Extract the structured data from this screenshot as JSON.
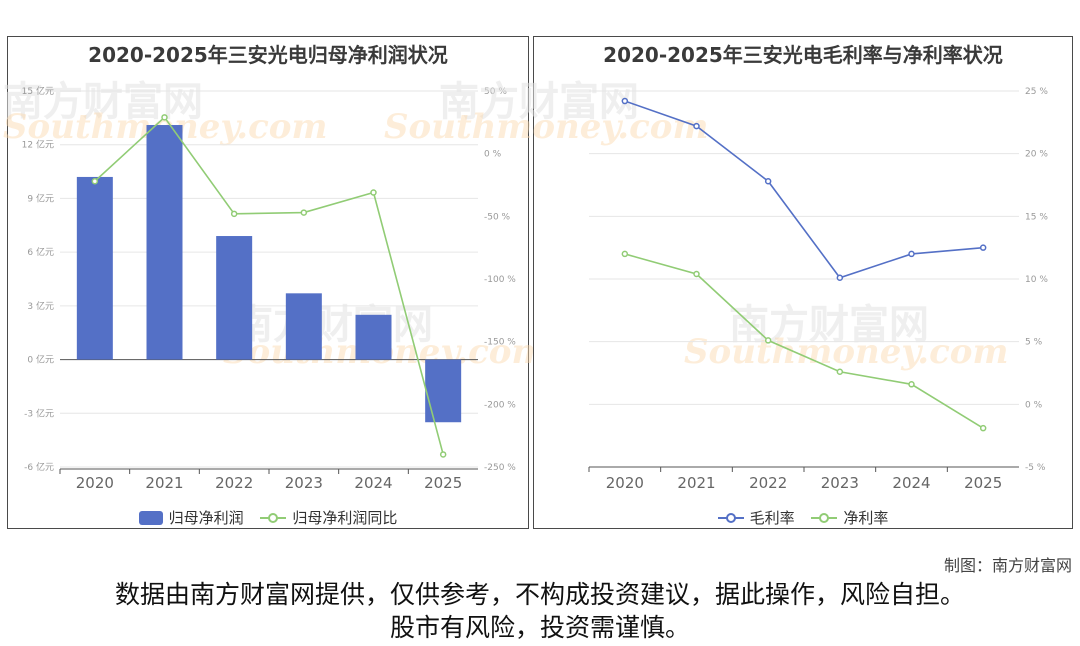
{
  "left_chart": {
    "title": "2020-2025年三安光电归母净利润状况",
    "left_axis": [
      "15 亿元",
      "12 亿元",
      "9 亿元",
      "6 亿元",
      "3 亿元",
      "0 亿元",
      "-3 亿元",
      "-6 亿元"
    ],
    "right_axis": [
      "50 %",
      "0 %",
      "-50 %",
      "-100 %",
      "-150 %",
      "-200 %",
      "-250 %"
    ],
    "legend_bar": "归母净利润",
    "legend_line": "归母净利润同比"
  },
  "right_chart": {
    "title": "2020-2025年三安光电毛利率与净利率状况",
    "right_axis": [
      "25 %",
      "20 %",
      "15 %",
      "10 %",
      "5 %",
      "0 %",
      "-5 %"
    ],
    "legend_gross": "毛利率",
    "legend_net": "净利率"
  },
  "watermark": {
    "cn": "南方财富网",
    "en": "Southmoney.com"
  },
  "credit": "制图：南方财富网",
  "disclaimer_line1": "数据由南方财富网提供，仅供参考，不构成投资建议，据此操作，风险自担。",
  "disclaimer_line2": "股市有风险，投资需谨慎。",
  "colors": {
    "bar": "#5470c6",
    "line_green": "#91cc75",
    "line_blue": "#5470c6"
  },
  "chart_data": [
    {
      "type": "bar",
      "categories": [
        "2020",
        "2021",
        "2022",
        "2023",
        "2024",
        "2025"
      ],
      "series": [
        {
          "name": "归母净利润",
          "type": "bar",
          "axis": "left",
          "values": [
            10.2,
            13.1,
            6.9,
            3.7,
            2.5,
            -3.5
          ]
        },
        {
          "name": "归母净利润同比",
          "type": "line",
          "axis": "right",
          "values": [
            -22,
            29,
            -48,
            -47,
            -31,
            -240
          ]
        }
      ],
      "ylim_left": [
        -6,
        15
      ],
      "ylim_right": [
        -250,
        50
      ],
      "grid": true,
      "legend": "bottom"
    },
    {
      "type": "line",
      "categories": [
        "2020",
        "2021",
        "2022",
        "2023",
        "2024",
        "2025"
      ],
      "series": [
        {
          "name": "毛利率",
          "values": [
            24.2,
            22.2,
            17.8,
            10.1,
            12.0,
            12.5
          ]
        },
        {
          "name": "净利率",
          "values": [
            12.0,
            10.4,
            5.1,
            2.6,
            1.6,
            -1.9
          ]
        }
      ],
      "ylim": [
        -5,
        25
      ],
      "grid": true,
      "legend": "bottom"
    }
  ]
}
